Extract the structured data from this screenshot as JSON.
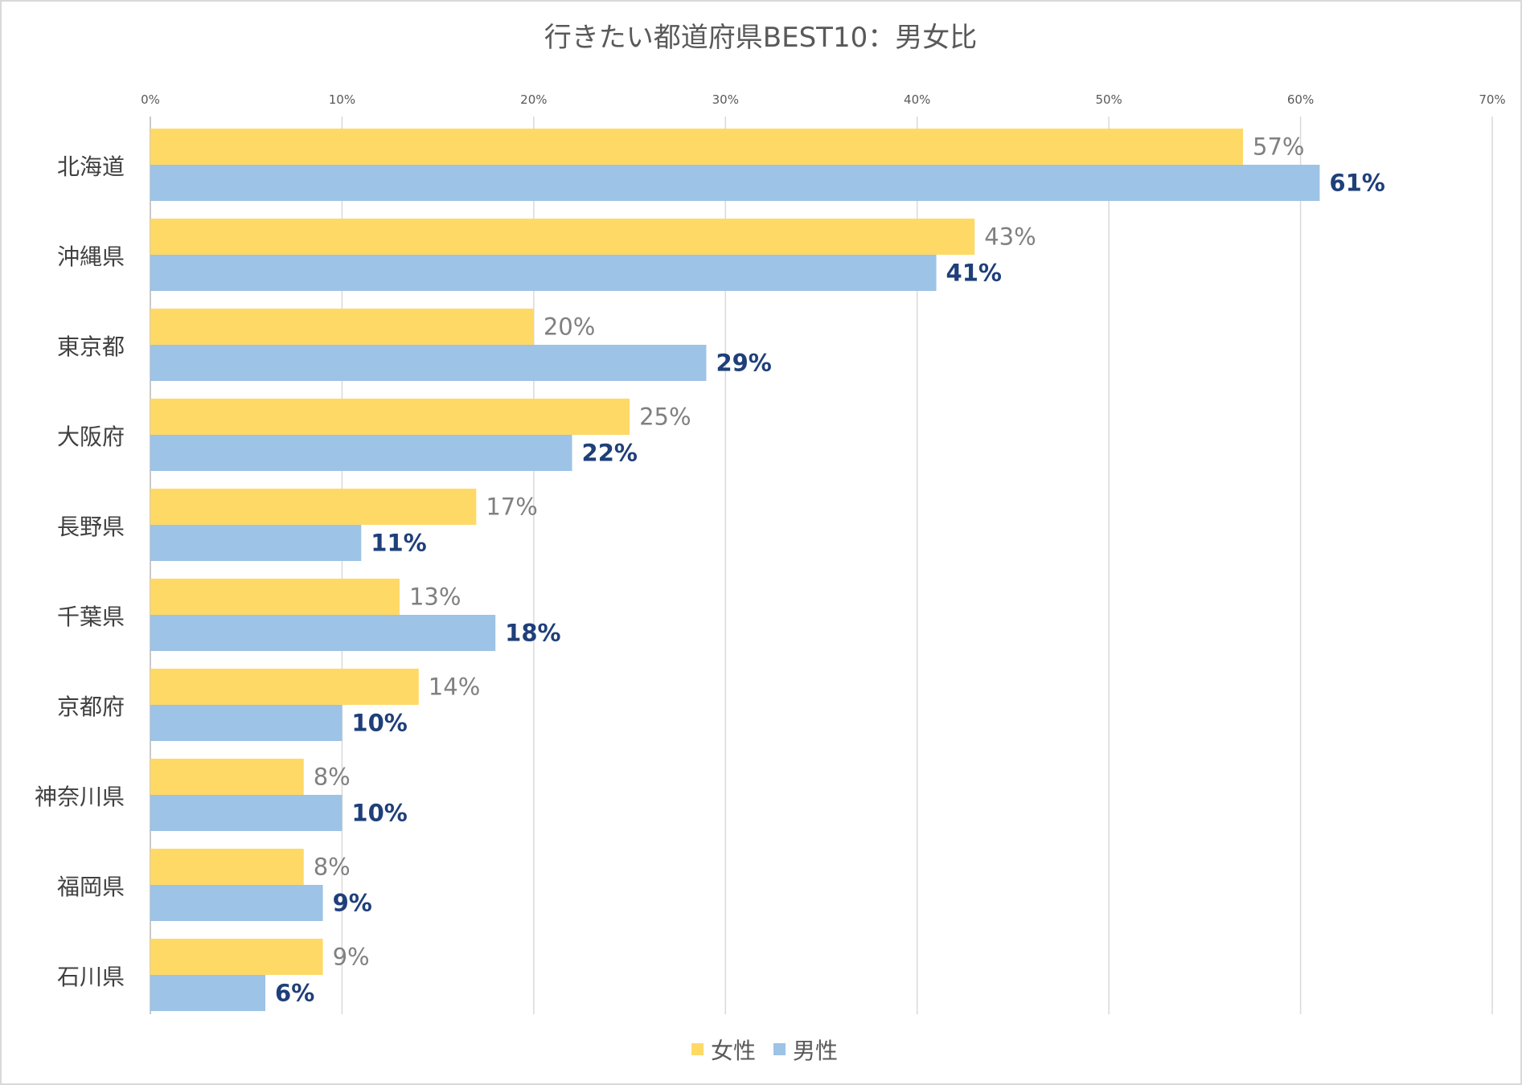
{
  "chart_data": {
    "type": "bar",
    "orientation": "horizontal",
    "title": "行きたい都道府県BEST10：男女比",
    "categories": [
      "北海道",
      "沖縄県",
      "東京都",
      "大阪府",
      "長野県",
      "千葉県",
      "京都府",
      "神奈川県",
      "福岡県",
      "石川県"
    ],
    "series": [
      {
        "name": "女性",
        "color": "#ffd966",
        "values": [
          57,
          43,
          20,
          25,
          17,
          13,
          14,
          8,
          8,
          9
        ],
        "labels": [
          "57%",
          "43%",
          "20%",
          "25%",
          "17%",
          "13%",
          "14%",
          "8%",
          "8%",
          "9%"
        ]
      },
      {
        "name": "男性",
        "color": "#9dc3e6",
        "values": [
          61,
          41,
          29,
          22,
          11,
          18,
          10,
          10,
          9,
          6
        ],
        "labels": [
          "61%",
          "41%",
          "29%",
          "22%",
          "11%",
          "18%",
          "10%",
          "10%",
          "9%",
          "6%"
        ]
      }
    ],
    "xlim": [
      0,
      70
    ],
    "x_ticks": [
      0,
      10,
      20,
      30,
      40,
      50,
      60,
      70
    ],
    "x_tick_labels": [
      "0%",
      "10%",
      "20%",
      "30%",
      "40%",
      "50%",
      "60%",
      "70%"
    ],
    "x_axis_position": "top",
    "grid": true,
    "legend_position": "bottom",
    "label_colors": {
      "female": "#808080",
      "male": "#1f3f7a"
    },
    "grid_color": "#d9d9d9",
    "border_color": "#d9d9d9"
  }
}
